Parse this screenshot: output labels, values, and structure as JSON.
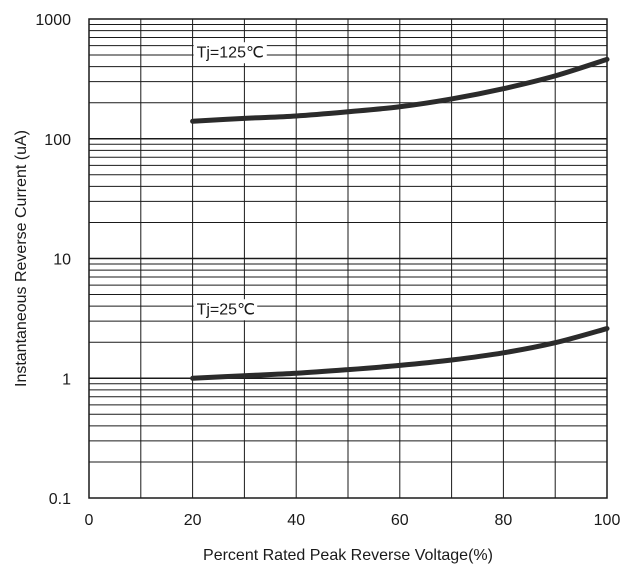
{
  "chart_data": {
    "type": "line",
    "xlabel": "Percent  Rated  Peak  Reverse  Voltage(%)",
    "ylabel": "Instantaneous Reverse Current (uA)",
    "xlim": [
      0,
      100
    ],
    "ylim": [
      0.1,
      1000
    ],
    "yscale": "log",
    "grid": true,
    "x_ticks": [
      0,
      20,
      40,
      60,
      80,
      100
    ],
    "x_tick_labels": [
      "0",
      "20",
      "40",
      "60",
      "80",
      "100"
    ],
    "y_ticks": [
      0.1,
      1,
      10,
      100,
      1000
    ],
    "y_tick_labels": [
      "0.1",
      "1",
      "10",
      "100",
      "1000"
    ],
    "series": [
      {
        "name": "Tj=125℃",
        "x": [
          20,
          30,
          40,
          50,
          60,
          70,
          80,
          90,
          100
        ],
        "values": [
          140,
          148,
          155,
          168,
          185,
          215,
          262,
          335,
          460
        ]
      },
      {
        "name": "Tj=25℃",
        "x": [
          20,
          30,
          40,
          50,
          60,
          70,
          80,
          90,
          100
        ],
        "values": [
          1.0,
          1.05,
          1.1,
          1.18,
          1.28,
          1.42,
          1.63,
          1.98,
          2.6
        ]
      }
    ],
    "colors": {
      "line": "#2b2b2b",
      "grid": "#1a1a1a"
    }
  }
}
